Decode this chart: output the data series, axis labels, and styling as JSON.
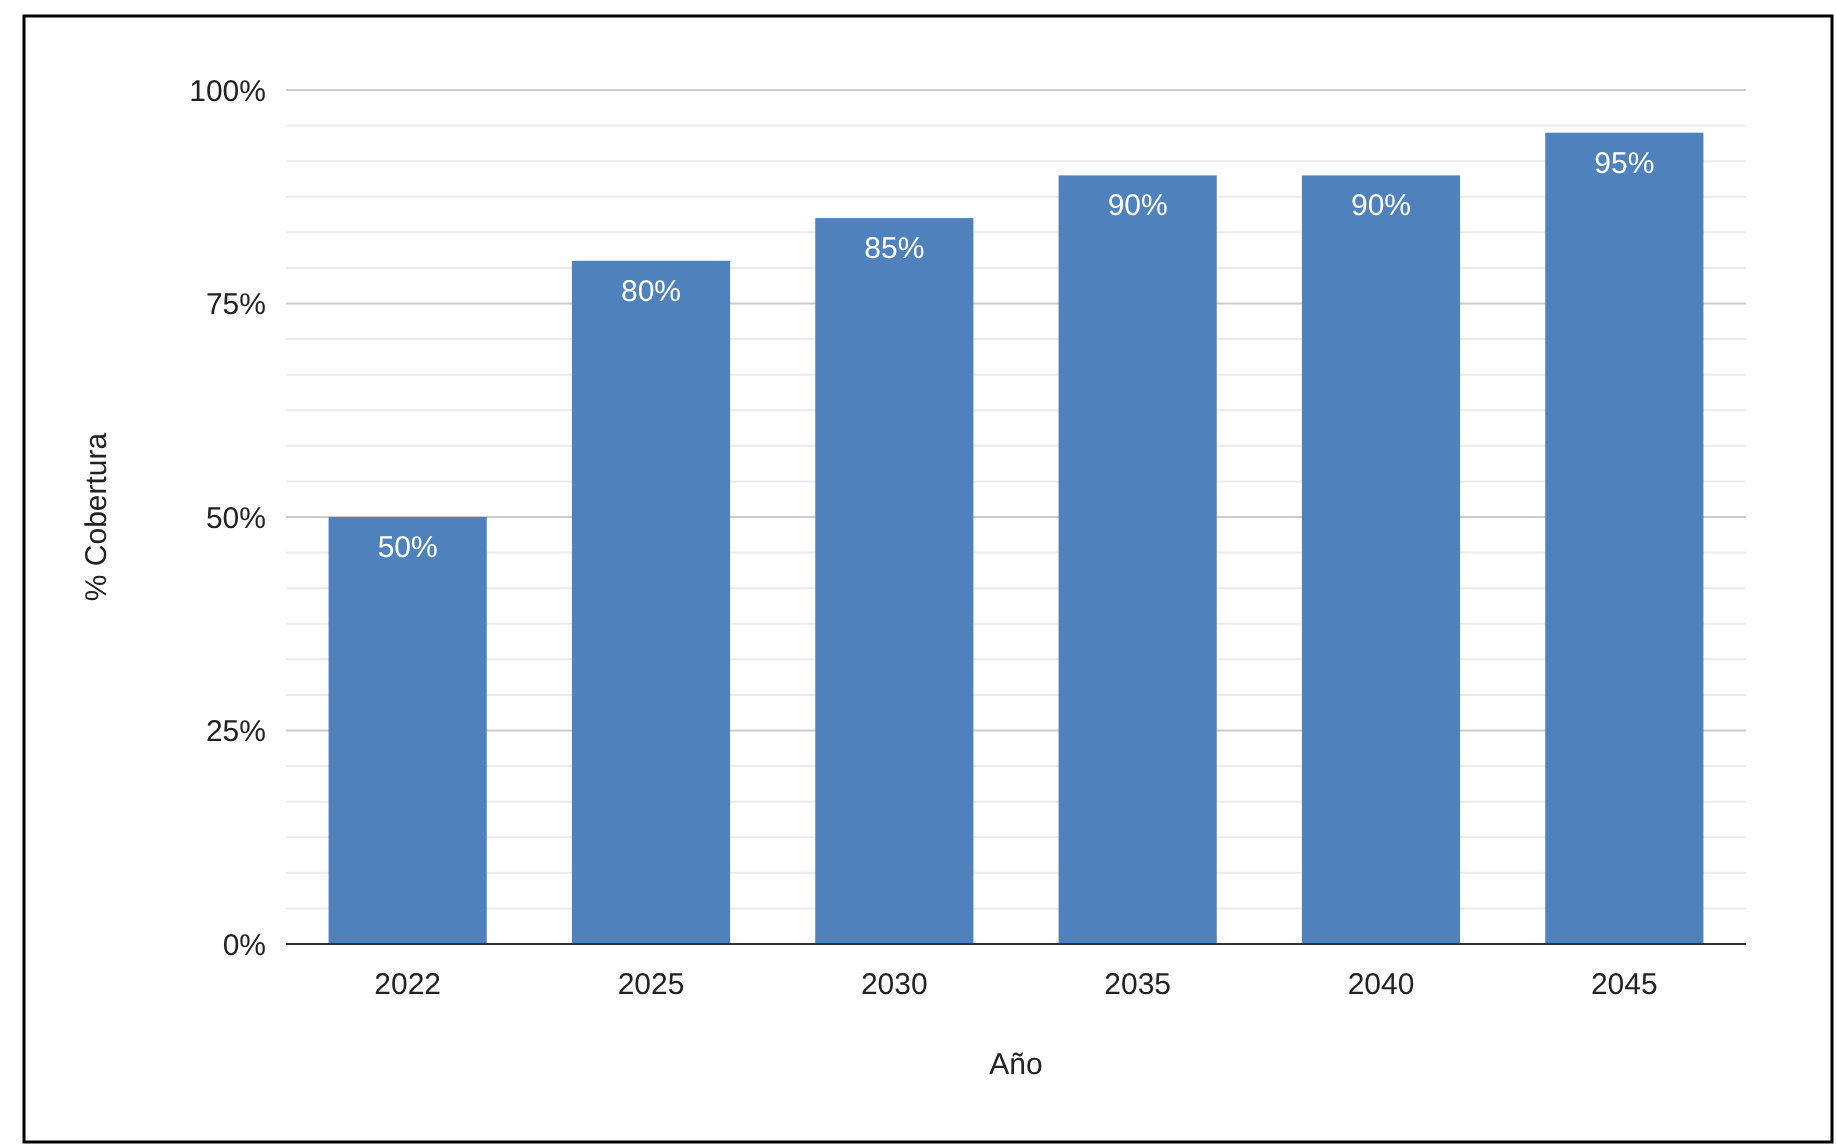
{
  "chart_data": {
    "type": "bar",
    "xlabel": "Año",
    "ylabel": "% Cobertura",
    "categories": [
      "2022",
      "2025",
      "2030",
      "2035",
      "2040",
      "2045"
    ],
    "values": [
      50,
      80,
      85,
      90,
      90,
      95
    ],
    "color": "#4f81bd",
    "data_labels": true,
    "value_labels": [
      "50%",
      "80%",
      "85%",
      "90%",
      "90%",
      "95%"
    ],
    "ylim": [
      0,
      100
    ],
    "yticks": [
      {
        "value": 0,
        "label": "0%"
      },
      {
        "value": 25,
        "label": "25%"
      },
      {
        "value": 50,
        "label": "50%"
      },
      {
        "value": 75,
        "label": "75%"
      },
      {
        "value": 100,
        "label": "100%"
      }
    ],
    "grid": true
  }
}
